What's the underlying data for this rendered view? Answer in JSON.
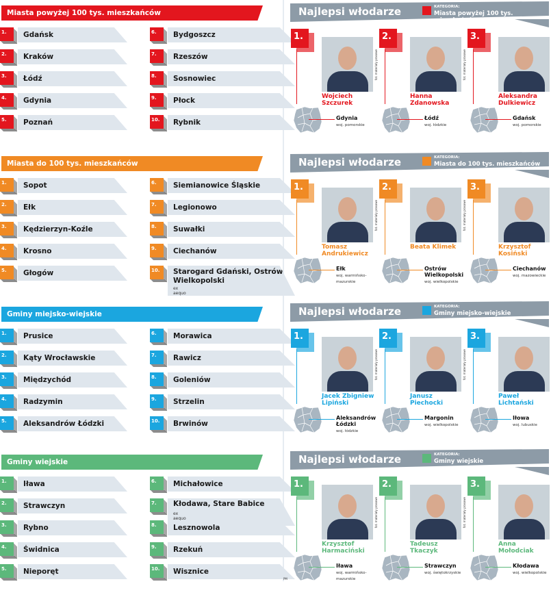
{
  "sections": [
    {
      "category": "Miasta powyżej 100 tys. mieszkańców",
      "color": "#e3161e",
      "items": [
        {
          "rank": "1.",
          "name": "Gdańsk"
        },
        {
          "rank": "2.",
          "name": "Kraków"
        },
        {
          "rank": "3.",
          "name": "Łódź"
        },
        {
          "rank": "4.",
          "name": "Gdynia"
        },
        {
          "rank": "5.",
          "name": "Poznań"
        },
        {
          "rank": "6.",
          "name": "Bydgoszcz"
        },
        {
          "rank": "7.",
          "name": "Rzeszów"
        },
        {
          "rank": "8.",
          "name": "Sosnowiec"
        },
        {
          "rank": "9.",
          "name": "Płock"
        },
        {
          "rank": "10.",
          "name": "Rybnik"
        }
      ],
      "winners": [
        {
          "rank": "1.",
          "name": "Wojciech Szczurek",
          "city": "Gdynia",
          "voivodeship": "woj. pomorskie",
          "credit": "fot. materiały prasowe"
        },
        {
          "rank": "2.",
          "name": "Hanna Zdanowska",
          "city": "Łódź",
          "voivodeship": "woj. łódzkie",
          "credit": "fot. materiały prasowe"
        },
        {
          "rank": "3.",
          "name": "Aleksandra Dulkiewicz",
          "city": "Gdańsk",
          "voivodeship": "woj. pomorskie",
          "credit": "fot. materiały prasowe"
        }
      ]
    },
    {
      "category": "Miasta do 100 tys. mieszkańców",
      "color": "#f08a24",
      "items": [
        {
          "rank": "1.",
          "name": "Sopot"
        },
        {
          "rank": "2.",
          "name": "Ełk"
        },
        {
          "rank": "3.",
          "name": "Kędzierzyn-Koźle"
        },
        {
          "rank": "4.",
          "name": "Krosno"
        },
        {
          "rank": "5.",
          "name": "Głogów"
        },
        {
          "rank": "6.",
          "name": "Siemianowice Śląskie"
        },
        {
          "rank": "7.",
          "name": "Legionowo"
        },
        {
          "rank": "8.",
          "name": "Suwałki"
        },
        {
          "rank": "9.",
          "name": "Ciechanów"
        },
        {
          "rank": "10.",
          "name": "Starogard Gdański, Ostrów Wielkopolski",
          "note": "ex aequo"
        }
      ],
      "winners": [
        {
          "rank": "1.",
          "name": "Tomasz Andrukiewicz",
          "city": "Ełk",
          "voivodeship": "woj. warmińsko-mazurskie",
          "credit": "fot. materiały prasowe"
        },
        {
          "rank": "2.",
          "name": "Beata Klimek",
          "city": "Ostrów Wielkopolski",
          "voivodeship": "woj. wielkopolskie",
          "credit": "fot. materiały prasowe"
        },
        {
          "rank": "3.",
          "name": "Krzysztof Kosiński",
          "city": "Ciechanów",
          "voivodeship": "woj. mazowieckie",
          "credit": "fot. materiały prasowe"
        }
      ]
    },
    {
      "category": "Gminy miejsko-wiejskie",
      "color": "#1ba6df",
      "items": [
        {
          "rank": "1.",
          "name": "Prusice"
        },
        {
          "rank": "2.",
          "name": "Kąty Wrocławskie"
        },
        {
          "rank": "3.",
          "name": "Międzychód"
        },
        {
          "rank": "4.",
          "name": "Radzymin"
        },
        {
          "rank": "5.",
          "name": "Aleksandrów Łódzki"
        },
        {
          "rank": "6.",
          "name": "Morawica"
        },
        {
          "rank": "7.",
          "name": "Rawicz"
        },
        {
          "rank": "8.",
          "name": "Goleniów"
        },
        {
          "rank": "9.",
          "name": "Strzelin"
        },
        {
          "rank": "10.",
          "name": "Brwinów"
        }
      ],
      "winners": [
        {
          "rank": "1.",
          "name": "Jacek Zbigniew Lipiński",
          "city": "Aleksandrów Łódzki",
          "voivodeship": "woj. łódzkie",
          "credit": "fot. materiały prasowe"
        },
        {
          "rank": "2.",
          "name": "Janusz Piechocki",
          "city": "Margonin",
          "voivodeship": "woj. wielkopolskie",
          "credit": "fot. materiały prasowe"
        },
        {
          "rank": "3.",
          "name": "Paweł Lichtański",
          "city": "Iłowa",
          "voivodeship": "woj. lubuskie",
          "credit": "fot. materiały prasowe"
        }
      ]
    },
    {
      "category": "Gminy wiejskie",
      "color": "#5cb87b",
      "items": [
        {
          "rank": "1.",
          "name": "Iława"
        },
        {
          "rank": "2.",
          "name": "Strawczyn"
        },
        {
          "rank": "3.",
          "name": "Rybno"
        },
        {
          "rank": "4.",
          "name": "Świdnica"
        },
        {
          "rank": "5.",
          "name": "Nieporęt"
        },
        {
          "rank": "6.",
          "name": "Michałowice"
        },
        {
          "rank": "7.",
          "name": "Kłodawa, Stare Babice",
          "note": "ex aequo"
        },
        {
          "rank": "8.",
          "name": "Lesznowola"
        },
        {
          "rank": "9.",
          "name": "Rzekuń"
        },
        {
          "rank": "10.",
          "name": "Wisznice"
        }
      ],
      "winners": [
        {
          "rank": "1.",
          "name": "Krzysztof Harmaciński",
          "city": "Iława",
          "voivodeship": "woj. warmińsko-mazurskie",
          "credit": "fot. materiały prasowe"
        },
        {
          "rank": "2.",
          "name": "Tadeusz Tkaczyk",
          "city": "Strawczyn",
          "voivodeship": "woj. świętokrzyskie",
          "credit": "fot. materiały prasowe"
        },
        {
          "rank": "3.",
          "name": "Anna Mołodciak",
          "city": "Kłodawa",
          "voivodeship": "woj. wielkopolskie",
          "credit": "fot. materiały prasowe"
        }
      ]
    }
  ],
  "panel": {
    "title": "Najlepsi włodarze",
    "category_label": "KATEGORIA:"
  },
  "footer_mark": "PM"
}
